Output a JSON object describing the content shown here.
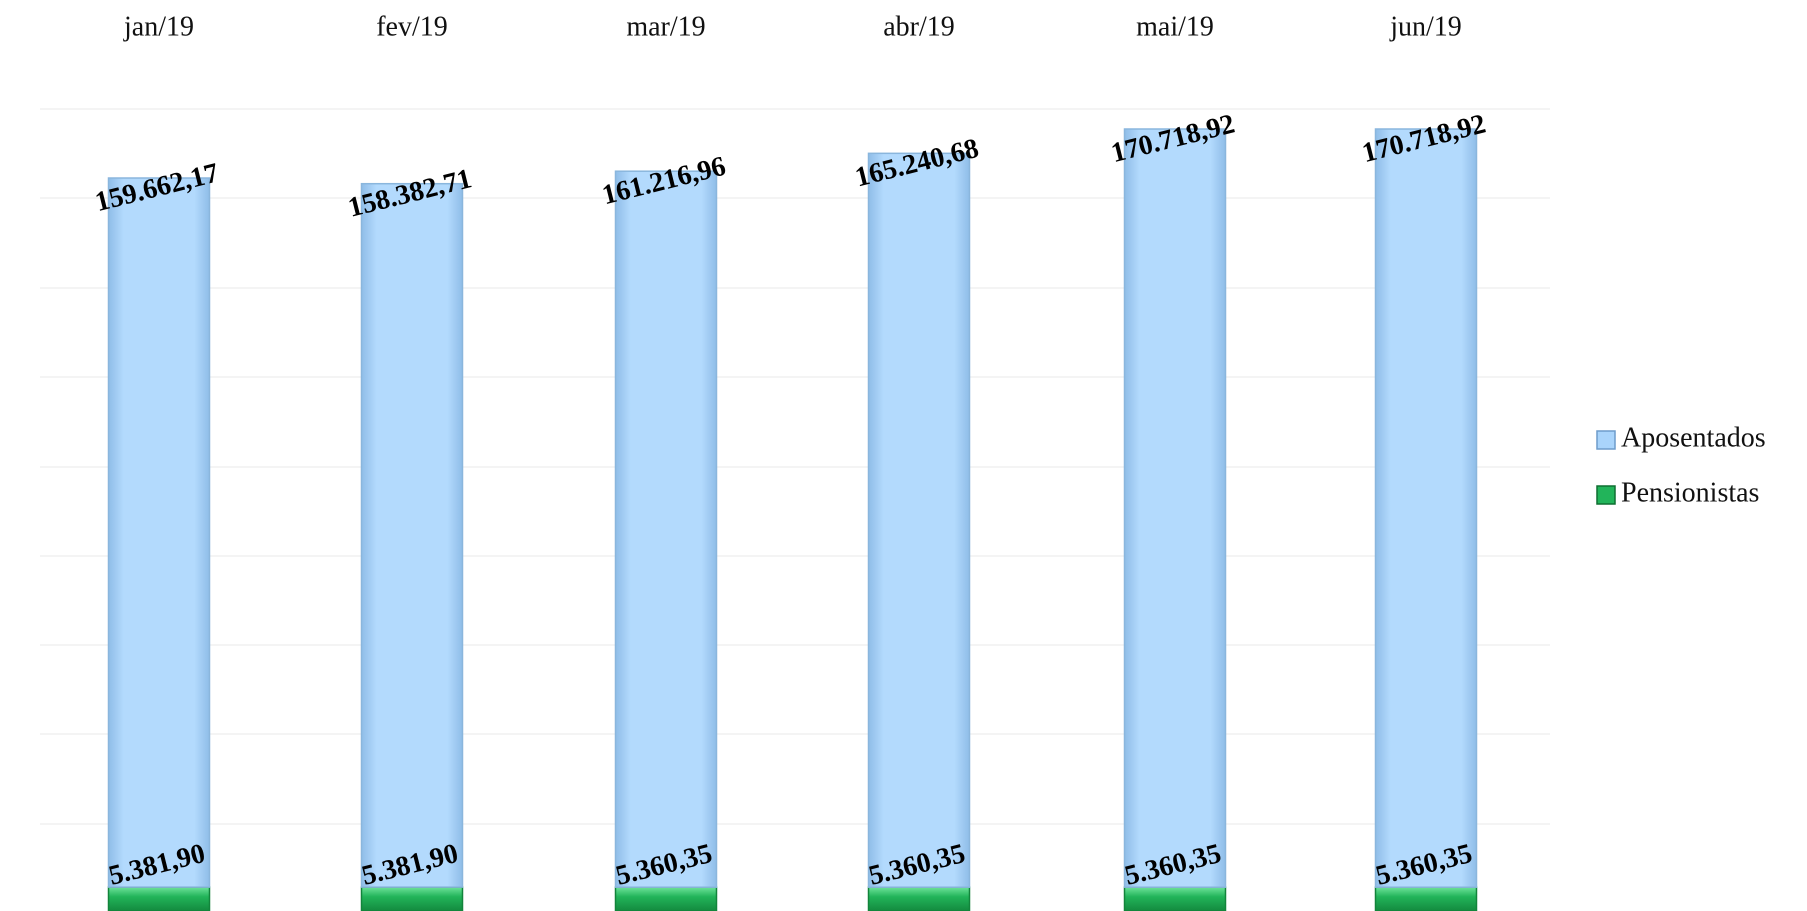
{
  "chart_data": {
    "type": "stacked_bar",
    "categories": [
      "jan/19",
      "fev/19",
      "mar/19",
      "abr/19",
      "mai/19",
      "jun/19"
    ],
    "series": [
      {
        "name": "Aposentados",
        "color": "#a9d4fb",
        "values": [
          159662.17,
          158382.71,
          161216.96,
          165240.68,
          170718.92,
          170718.92
        ],
        "value_labels": [
          "159.662,17",
          "158.382,71",
          "161.216,96",
          "165.240,68",
          "170.718,92",
          "170.718,92"
        ]
      },
      {
        "name": "Pensionistas",
        "color": "#22b45a",
        "values": [
          5381.9,
          5381.9,
          5360.35,
          5360.35,
          5360.35,
          5360.35
        ],
        "value_labels": [
          "5.381,90",
          "5.381,90",
          "5.360,35",
          "5.360,35",
          "5.360,35",
          "5.360,35"
        ]
      }
    ]
  }
}
